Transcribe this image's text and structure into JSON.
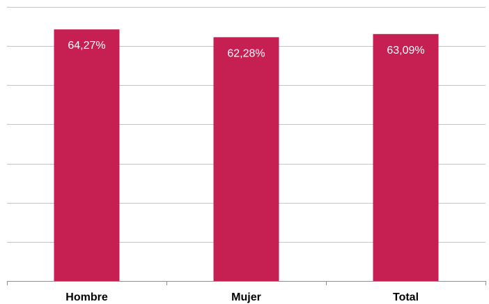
{
  "colors": {
    "bar": "#c61f51"
  },
  "chart_data": {
    "type": "bar",
    "categories": [
      "Hombre",
      "Mujer",
      "Total"
    ],
    "values": [
      64.27,
      62.28,
      63.09
    ],
    "data_labels": [
      "64,27%",
      "62,28%",
      "63,09%"
    ],
    "title": "",
    "xlabel": "",
    "ylabel": "",
    "ylim": [
      0,
      70
    ],
    "grid": true,
    "legend": "none"
  }
}
